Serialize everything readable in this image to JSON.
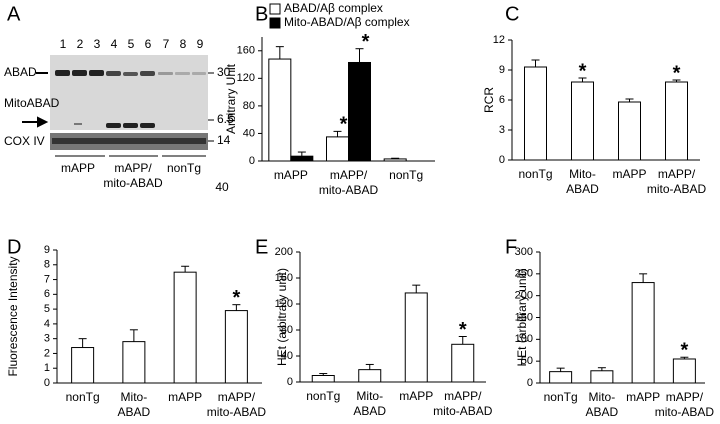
{
  "blot": {
    "panel": "A",
    "lanes": [
      "1",
      "2",
      "3",
      "4",
      "5",
      "6",
      "7",
      "8",
      "9"
    ],
    "rows": [
      "ABAD",
      "MitoABAD",
      "COX IV"
    ],
    "markers": [
      "30",
      "6.5",
      "14"
    ],
    "groups": [
      "mAPP",
      [
        "mAPP/",
        "mito-ABAD"
      ],
      "nonTg"
    ],
    "note": "40"
  },
  "chart_data": [
    {
      "type": "bar",
      "panel": "B",
      "ylabel": "Arbitrary Unit",
      "categories": [
        [
          "mAPP"
        ],
        [
          "mAPP/",
          "mito-ABAD"
        ],
        [
          "nonTg"
        ]
      ],
      "series": [
        {
          "name": "ABAD/Aβ complex",
          "color": "#ffffff",
          "values": [
            148,
            35,
            3
          ],
          "errors": [
            18,
            8,
            1
          ],
          "significance": [
            false,
            true,
            false
          ]
        },
        {
          "name": "Mito-ABAD/Aβ complex",
          "color": "#000000",
          "values": [
            7,
            143,
            null
          ],
          "errors": [
            6,
            20,
            null
          ],
          "significance": [
            false,
            true,
            false
          ]
        }
      ],
      "marker": "*",
      "legend": "top",
      "ylim": [
        0,
        180
      ],
      "yticks": [
        0,
        40,
        80,
        120,
        160
      ]
    },
    {
      "type": "bar",
      "panel": "C",
      "ylabel": "RCR",
      "categories": [
        [
          "nonTg"
        ],
        [
          "Mito-",
          "ABAD"
        ],
        [
          "mAPP"
        ],
        [
          "mAPP/",
          "mito-ABAD"
        ]
      ],
      "color": "#ffffff",
      "values": [
        9.3,
        7.8,
        5.8,
        7.8
      ],
      "errors": [
        0.7,
        0.4,
        0.3,
        0.2
      ],
      "significance": [
        false,
        true,
        false,
        true
      ],
      "marker": "*",
      "ylim": [
        0,
        12
      ],
      "yticks": [
        0,
        3,
        6,
        9,
        12
      ]
    },
    {
      "type": "bar",
      "panel": "D",
      "ylabel": "Fluorescence Intensity",
      "categories": [
        [
          "nonTg"
        ],
        [
          "Mito-",
          "ABAD"
        ],
        [
          "mAPP"
        ],
        [
          "mAPP/",
          "mito-ABAD"
        ]
      ],
      "color": "#ffffff",
      "values": [
        2.4,
        2.8,
        7.5,
        4.9
      ],
      "errors": [
        0.6,
        0.8,
        0.4,
        0.4
      ],
      "significance": [
        false,
        false,
        false,
        true
      ],
      "marker": "*",
      "ylim": [
        0,
        9
      ],
      "yticks": [
        0,
        1,
        2,
        3,
        4,
        5,
        6,
        7,
        8,
        9
      ]
    },
    {
      "type": "bar",
      "panel": "E",
      "ylabel": "HEt (arbitrary unit)",
      "categories": [
        [
          "nonTg"
        ],
        [
          "Mito-",
          "ABAD"
        ],
        [
          "mAPP"
        ],
        [
          "mAPP/",
          "mito-ABAD"
        ]
      ],
      "color": "#ffffff",
      "values": [
        10,
        19,
        137,
        58
      ],
      "errors": [
        3,
        8,
        12,
        12
      ],
      "significance": [
        false,
        false,
        false,
        true
      ],
      "marker": "*",
      "ylim": [
        0,
        200
      ],
      "yticks": [
        0,
        40,
        80,
        120,
        160,
        200
      ]
    },
    {
      "type": "bar",
      "panel": "F",
      "ylabel": "HEt (arbitrary unit)",
      "categories": [
        [
          "nonTg"
        ],
        [
          "Mito-",
          "ABAD"
        ],
        [
          "mAPP"
        ],
        [
          "mAPP/",
          "mito-ABAD"
        ]
      ],
      "color": "#ffffff",
      "values": [
        26,
        28,
        230,
        55
      ],
      "errors": [
        8,
        7,
        20,
        4
      ],
      "significance": [
        false,
        false,
        false,
        true
      ],
      "marker": "*",
      "ylim": [
        0,
        300
      ],
      "yticks": [
        0,
        50,
        100,
        150,
        200,
        250,
        300
      ]
    }
  ]
}
